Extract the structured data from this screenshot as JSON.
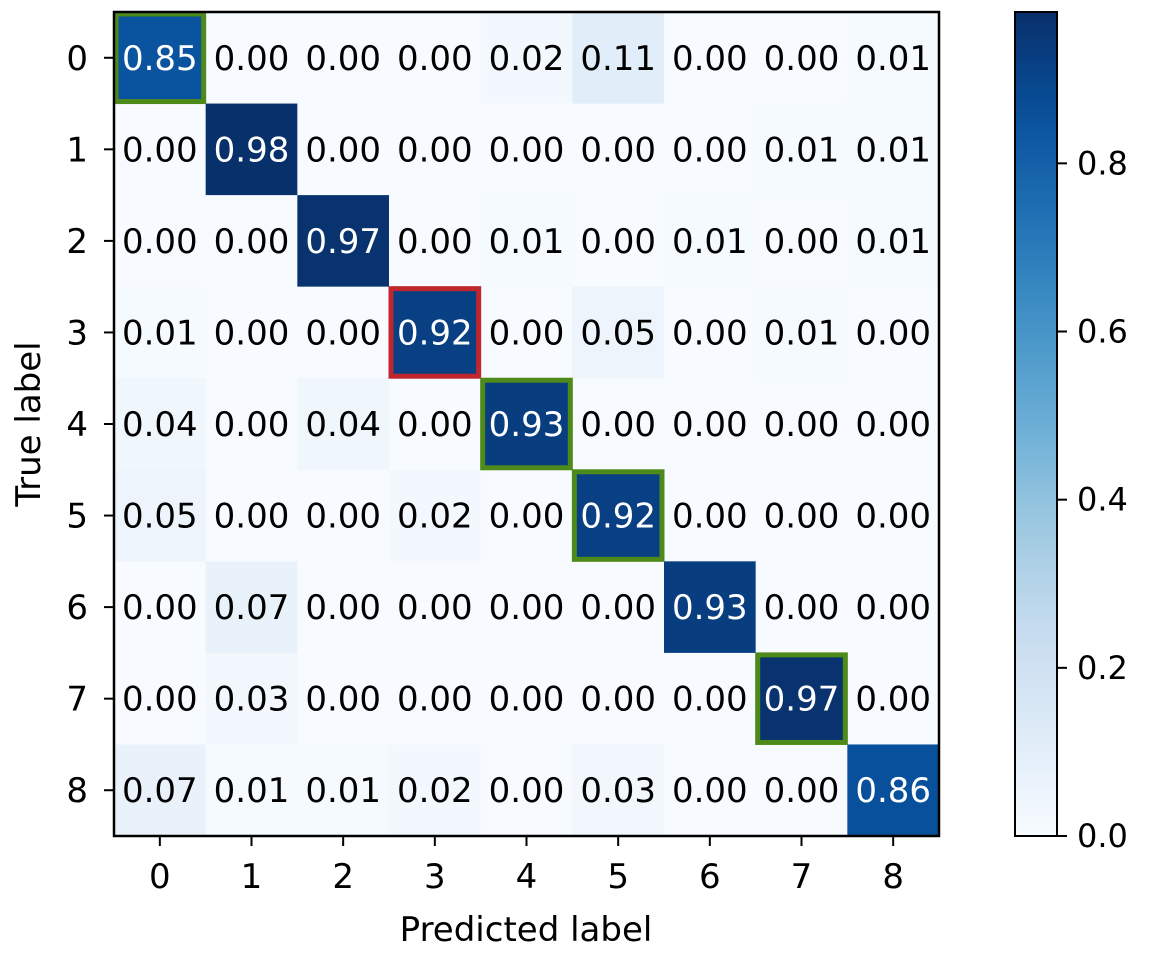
{
  "chart_data": {
    "type": "heatmap",
    "title": "",
    "xlabel": "Predicted label",
    "ylabel": "True label",
    "x_categories": [
      "0",
      "1",
      "2",
      "3",
      "4",
      "5",
      "6",
      "7",
      "8"
    ],
    "y_categories": [
      "0",
      "1",
      "2",
      "3",
      "4",
      "5",
      "6",
      "7",
      "8"
    ],
    "values": [
      [
        0.85,
        0.0,
        0.0,
        0.0,
        0.02,
        0.11,
        0.0,
        0.0,
        0.01
      ],
      [
        0.0,
        0.98,
        0.0,
        0.0,
        0.0,
        0.0,
        0.0,
        0.01,
        0.01
      ],
      [
        0.0,
        0.0,
        0.97,
        0.0,
        0.01,
        0.0,
        0.01,
        0.0,
        0.01
      ],
      [
        0.01,
        0.0,
        0.0,
        0.92,
        0.0,
        0.05,
        0.0,
        0.01,
        0.0
      ],
      [
        0.04,
        0.0,
        0.04,
        0.0,
        0.93,
        0.0,
        0.0,
        0.0,
        0.0
      ],
      [
        0.05,
        0.0,
        0.0,
        0.02,
        0.0,
        0.92,
        0.0,
        0.0,
        0.0
      ],
      [
        0.0,
        0.07,
        0.0,
        0.0,
        0.0,
        0.0,
        0.93,
        0.0,
        0.0
      ],
      [
        0.0,
        0.03,
        0.0,
        0.0,
        0.0,
        0.0,
        0.0,
        0.97,
        0.0
      ],
      [
        0.07,
        0.01,
        0.01,
        0.02,
        0.0,
        0.03,
        0.0,
        0.0,
        0.86
      ]
    ],
    "colormap": "Blues",
    "colorbar": {
      "range": [
        0.0,
        0.98
      ],
      "ticks": [
        "0.0",
        "0.2",
        "0.4",
        "0.6",
        "0.8"
      ],
      "tick_values": [
        0.0,
        0.2,
        0.4,
        0.6,
        0.8
      ],
      "placement": "right"
    },
    "highlights": [
      {
        "row": 0,
        "col": 0,
        "color": "#4e8a1a"
      },
      {
        "row": 3,
        "col": 3,
        "color": "#c0262d"
      },
      {
        "row": 4,
        "col": 4,
        "color": "#4e8a1a"
      },
      {
        "row": 5,
        "col": 5,
        "color": "#4e8a1a"
      },
      {
        "row": 7,
        "col": 7,
        "color": "#4e8a1a"
      }
    ],
    "grid": false
  }
}
